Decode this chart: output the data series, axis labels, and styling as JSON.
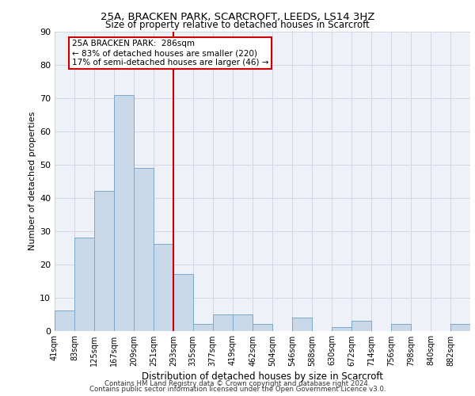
{
  "title1": "25A, BRACKEN PARK, SCARCROFT, LEEDS, LS14 3HZ",
  "title2": "Size of property relative to detached houses in Scarcroft",
  "xlabel": "Distribution of detached houses by size in Scarcroft",
  "ylabel": "Number of detached properties",
  "footer1": "Contains HM Land Registry data © Crown copyright and database right 2024.",
  "footer2": "Contains public sector information licensed under the Open Government Licence v3.0.",
  "annotation_line1": "25A BRACKEN PARK:  286sqm",
  "annotation_line2": "← 83% of detached houses are smaller (220)",
  "annotation_line3": "17% of semi-detached houses are larger (46) →",
  "bar_color": "#c9d9ea",
  "bar_edge_color": "#7aaaca",
  "vline_color": "#cc0000",
  "annotation_box_color": "#cc0000",
  "grid_color": "#d0d8e4",
  "background_color": "#eef2f8",
  "categories": [
    "41sqm",
    "83sqm",
    "125sqm",
    "167sqm",
    "209sqm",
    "251sqm",
    "293sqm",
    "335sqm",
    "377sqm",
    "419sqm",
    "462sqm",
    "504sqm",
    "546sqm",
    "588sqm",
    "630sqm",
    "672sqm",
    "714sqm",
    "756sqm",
    "798sqm",
    "840sqm",
    "882sqm"
  ],
  "values": [
    6,
    28,
    42,
    71,
    49,
    26,
    17,
    2,
    5,
    5,
    2,
    0,
    4,
    0,
    1,
    3,
    0,
    2,
    0,
    0,
    2
  ],
  "bin_edges": [
    41,
    83,
    125,
    167,
    209,
    251,
    293,
    335,
    377,
    419,
    462,
    504,
    546,
    588,
    630,
    672,
    714,
    756,
    798,
    840,
    882,
    924
  ],
  "ylim": [
    0,
    90
  ],
  "yticks": [
    0,
    10,
    20,
    30,
    40,
    50,
    60,
    70,
    80,
    90
  ],
  "vline_x": 293
}
